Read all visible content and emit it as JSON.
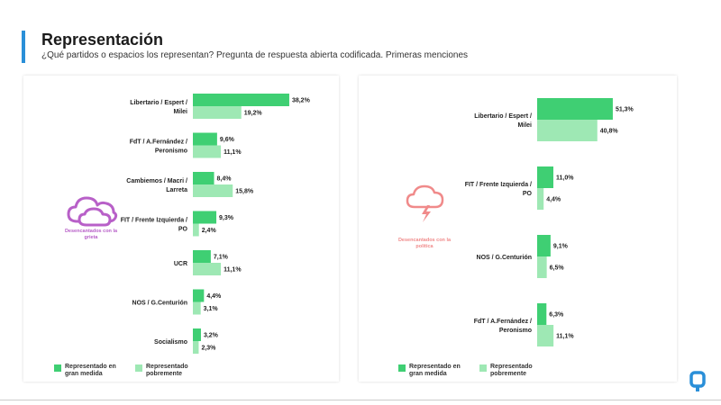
{
  "header": {
    "title": "Representación",
    "subtitle": "¿Qué partidos o espacios los representan? Pregunta de respuesta abierta codificada. Primeras menciones"
  },
  "colors": {
    "accent": "#2a8fd8",
    "series_high": "#3fcf73",
    "series_low": "#9ee8b4",
    "cloud_left": "#b860c8",
    "cloud_right": "#f08a8a"
  },
  "legend": {
    "high_label": "Representado en gran medida",
    "low_label": "Representado pobremente"
  },
  "left_panel": {
    "caption": "Desencantados con la grieta",
    "icon": "cloud-icon"
  },
  "right_panel": {
    "caption": "Desencantados con la política",
    "icon": "storm-cloud-icon"
  },
  "chart_data": [
    {
      "type": "bar",
      "orientation": "horizontal",
      "categories": [
        [
          "Libertario / Espert /",
          "Milei"
        ],
        [
          "FdT / A.Fernández /",
          "Peronismo"
        ],
        [
          "Cambiemos / Macri /",
          "Larreta"
        ],
        [
          "FIT / Frente Izquierda /",
          "PO"
        ],
        [
          "UCR"
        ],
        [
          "NOS / G.Centurión"
        ],
        [
          "Socialismo"
        ]
      ],
      "series": [
        {
          "name": "Representado en gran medida",
          "values": [
            38.2,
            9.6,
            8.4,
            9.3,
            7.1,
            4.4,
            3.2
          ],
          "labels": [
            "38,2%",
            "9,6%",
            "8,4%",
            "9,3%",
            "7,1%",
            "4,4%",
            "3,2%"
          ]
        },
        {
          "name": "Representado pobremente",
          "values": [
            19.2,
            11.1,
            15.8,
            2.4,
            11.1,
            3.1,
            2.3
          ],
          "labels": [
            "19,2%",
            "11,1%",
            "15,8%",
            "2,4%",
            "11,1%",
            "3,1%",
            "2,3%"
          ]
        }
      ],
      "xlim": [
        0,
        40
      ],
      "legend_position": "bottom-left"
    },
    {
      "type": "bar",
      "orientation": "horizontal",
      "categories": [
        [
          "Libertario / Espert /",
          "Milei"
        ],
        [
          "FIT / Frente Izquierda /",
          "PO"
        ],
        [
          "NOS / G.Centurión"
        ],
        [
          "FdT / A.Fernández /",
          "Peronismo"
        ]
      ],
      "series": [
        {
          "name": "Representado en gran medida",
          "values": [
            51.3,
            11.0,
            9.1,
            6.3
          ],
          "labels": [
            "51,3%",
            "11,0%",
            "9,1%",
            "6,3%"
          ]
        },
        {
          "name": "Representado pobremente",
          "values": [
            40.8,
            4.4,
            6.5,
            11.1
          ],
          "labels": [
            "40,8%",
            "4,4%",
            "6,5%",
            "11,1%"
          ]
        }
      ],
      "xlim": [
        0,
        55
      ],
      "legend_position": "bottom-left"
    }
  ]
}
